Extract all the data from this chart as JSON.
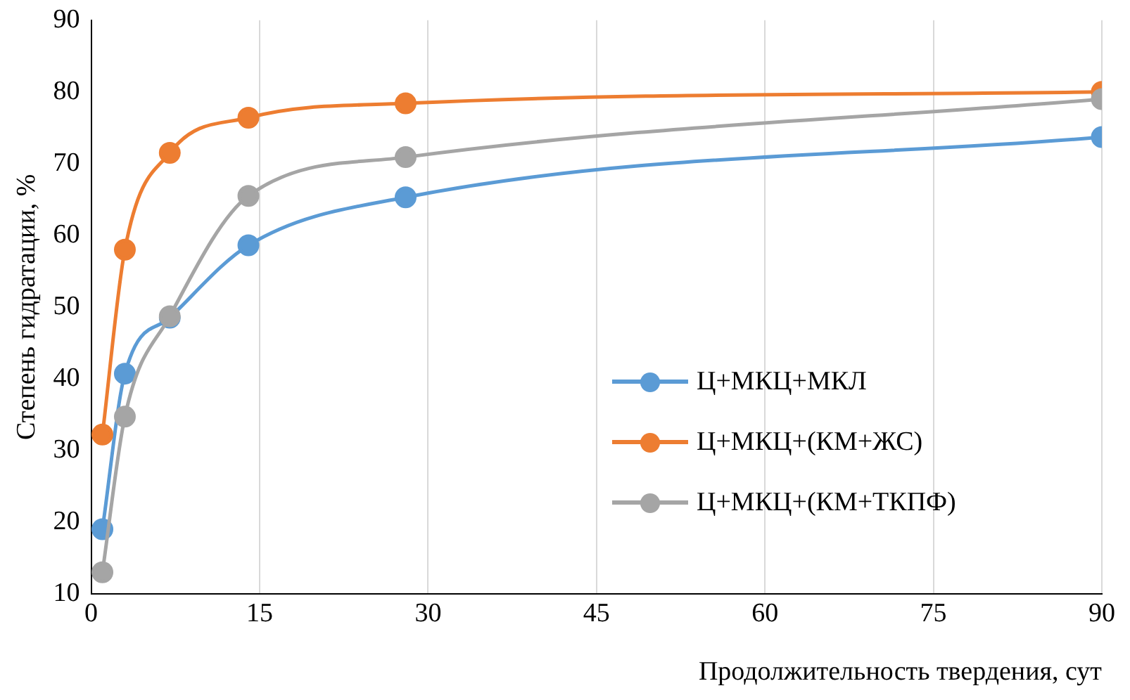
{
  "chart_data": {
    "type": "line",
    "xlabel": "Продолжительность твердения, сут",
    "ylabel": "Степень гидратации, %",
    "x": [
      1,
      3,
      7,
      14,
      28,
      90
    ],
    "series": [
      {
        "name": "Ц+МКЦ+МКЛ",
        "color": "#5b9bd5",
        "values": [
          19,
          40.7,
          48.5,
          58.6,
          65.3,
          73.7
        ]
      },
      {
        "name": "Ц+МКЦ+(КМ+ЖС)",
        "color": "#ed7d31",
        "values": [
          32.2,
          58,
          71.5,
          76.4,
          78.4,
          80
        ]
      },
      {
        "name": "Ц+МКЦ+(КМ+ТКПФ)",
        "color": "#a5a5a5",
        "values": [
          13,
          34.7,
          48.7,
          65.5,
          70.9,
          79
        ]
      }
    ],
    "xlim": [
      0,
      90
    ],
    "xticks": [
      0,
      15,
      30,
      45,
      60,
      75,
      90
    ],
    "ylim": [
      10,
      90
    ],
    "yticks": [
      10,
      20,
      30,
      40,
      50,
      60,
      70,
      80,
      90
    ],
    "grid": "x",
    "legend": "right",
    "marker": "circle",
    "line_style": "solid"
  }
}
